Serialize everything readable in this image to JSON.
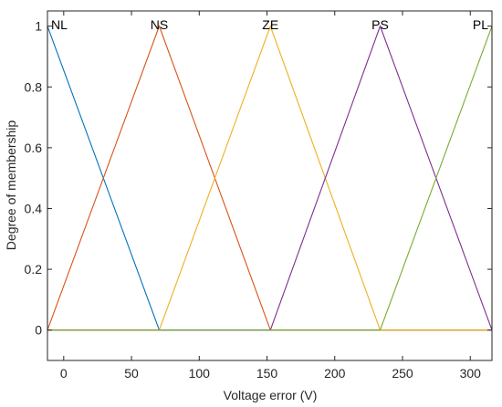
{
  "chart_data": {
    "type": "line",
    "title": "",
    "xlabel": "Voltage error (V)",
    "ylabel": "Degree of membership",
    "xlim": [
      -12,
      316
    ],
    "ylim": [
      -0.1,
      1.05
    ],
    "xticks": [
      0,
      50,
      100,
      150,
      200,
      250,
      300
    ],
    "xtick_labels": [
      "0",
      "50",
      "100",
      "150",
      "200",
      "250",
      "300"
    ],
    "yticks": [
      0,
      0.2,
      0.4,
      0.6,
      0.8,
      1
    ],
    "ytick_labels": [
      "0",
      "0.2",
      "0.4",
      "0.6",
      "0.8",
      "1"
    ],
    "grid": false,
    "series": [
      {
        "name": "NL",
        "color": "#0072BD",
        "x": [
          -12,
          -12,
          70.5,
          316
        ],
        "y": [
          0,
          1,
          0,
          0
        ]
      },
      {
        "name": "NS",
        "color": "#D95319",
        "x": [
          -12,
          70.5,
          152.5,
          316
        ],
        "y": [
          0,
          1,
          0,
          0
        ]
      },
      {
        "name": "ZE",
        "color": "#EDB120",
        "x": [
          -12,
          70.5,
          152.5,
          233.5,
          316
        ],
        "y": [
          0,
          0,
          1,
          0,
          0
        ]
      },
      {
        "name": "PS",
        "color": "#7E2F8E",
        "x": [
          -12,
          152.5,
          233.5,
          316
        ],
        "y": [
          0,
          0,
          1,
          0
        ]
      },
      {
        "name": "PL",
        "color": "#77AC30",
        "x": [
          -12,
          233.5,
          316,
          316
        ],
        "y": [
          0,
          0,
          1,
          0
        ]
      }
    ],
    "labels": [
      {
        "text": "NL",
        "x": -12
      },
      {
        "text": "NS",
        "x": 70.5
      },
      {
        "text": "ZE",
        "x": 152.5
      },
      {
        "text": "PS",
        "x": 233.5
      },
      {
        "text": "PL",
        "x": 316
      }
    ]
  }
}
